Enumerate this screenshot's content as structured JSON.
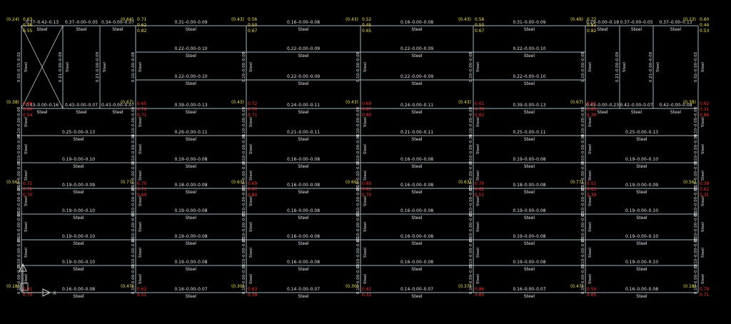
{
  "drawing": {
    "material": "Steel",
    "colors": {
      "background": "#000000",
      "member": "#9fb3bd",
      "brace": "#c8c8c8",
      "label": "#e6e6e6",
      "ratio_yellow": "#f2e24a",
      "ratio_red": "#ff3030",
      "ucs_icon": "#d0d0d0"
    },
    "ucs_axis_label": "X",
    "column_lines": 8,
    "floor_levels": 8,
    "roof_beams_row0": [
      "0.37–0.42–0.13",
      "0.37–0.00–0.05",
      "0.34–0.00–0.07",
      "0.31–0.00–0.09",
      "0.16–0.00–0.08",
      "0.16–0.00–0.08",
      "0.31–0.00–0.09",
      "0.29–0.00–0.18",
      "0.37–0.00–0.05",
      "0.37–0.00–0.13"
    ],
    "roof_inner_beams": [
      [
        "0.22–0.00–0.10",
        "0.22–0.00–0.09",
        "0.22–0.00–0.09",
        "0.22–0.00–0.10"
      ],
      [
        "0.22–0.00–0.10",
        "0.22–0.00–0.09",
        "0.22–0.00–0.09",
        "0.22–0.00–0.10"
      ]
    ],
    "level_beams": [
      [
        "0.43–0.00–0.16",
        "0.43–0.00–0.07",
        "0.43–0.00–0.07",
        "0.39–0.00–0.13",
        "0.24–0.00–0.11",
        "0.24–0.00–0.11",
        "0.39–0.00–0.13",
        "0.43–0.00–0.23",
        "0.42–0.00–0.07",
        "0.42–0.00–0.08"
      ],
      [
        "0.25–0.00–0.13",
        "0.26–0.00–0.11",
        "0.21–0.00–0.11",
        "0.21–0.00–0.11",
        "0.25–0.00–0.11",
        "0.25–0.00–0.13"
      ],
      [
        "0.19–0.00–0.10",
        "0.19–0.00–0.08",
        "0.16–0.00–0.08",
        "0.16–0.00–0.08",
        "0.19–0.00–0.08",
        "0.19–0.00–0.10"
      ],
      [
        "0.19–0.00–0.09",
        "0.18–0.00–0.08",
        "0.16–0.00–0.08",
        "0.16–0.00–0.08",
        "0.18–0.00–0.08",
        "0.19–0.00–0.09"
      ],
      [
        "0.19–0.00–0.10",
        "0.19–0.00–0.08",
        "0.16–0.00–0.08",
        "0.16–0.00–0.08",
        "0.19–0.00–0.08",
        "0.19–0.00–0.10"
      ],
      [
        "0.19–0.00–0.10",
        "0.19–0.00–0.08",
        "0.16–0.00–0.08",
        "0.16–0.00–0.08",
        "0.19–0.00–0.08",
        "0.19–0.00–0.10"
      ],
      [
        "0.19–0.00–0.10",
        "0.19–0.00–0.08",
        "0.16–0.00–0.08",
        "0.16–0.00–0.08",
        "0.19–0.00–0.08",
        "0.19–0.00–0.10"
      ],
      [
        "0.16–0.00–0.08",
        "0.16–0.00–0.07",
        "0.14–0.00–0.07",
        "0.14–0.00–0.07",
        "0.16–0.00–0.07",
        "0.16–0.00–0.08"
      ]
    ],
    "roof_columns": [
      "0.02–0.15–0.02",
      "0.21–0.00–0.09",
      "0.21–0.00–0.09",
      "0.21–0.00–0.09",
      "0.21–0.00–0.09",
      "0.02–0.00–0.02"
    ],
    "column_labels": "0.10–0.00–0.08",
    "joint_ratios_top": [
      "(0.24)",
      "(0.64)",
      "(0.43)",
      "(0.43)",
      "(0.43)",
      "(0.49)",
      "(0.23)"
    ],
    "joint_ratios_yellow": [
      "0.63",
      "0.71",
      "0.56",
      "0.52",
      "0.56",
      "0.72",
      "0.60"
    ],
    "joint_values": [
      "0.46",
      "0.55",
      "0.62",
      "0.82",
      "0.50",
      "0.67",
      "0.45",
      "0.65",
      "0.50",
      "0.67",
      "0.82",
      "0.82",
      "0.44",
      "0.53"
    ],
    "joint_ratios_level1": [
      "(0.38)",
      "(0.67)",
      "(0.43)",
      "(0.43)",
      "(0.43)",
      "(0.67)",
      "(0.38)"
    ],
    "joint_ratios_level4": [
      "(0.56)",
      "(0.77)",
      "(0.63)",
      "(0.69)",
      "(0.63)",
      "(0.77)",
      "(0.56)"
    ],
    "joint_ratios_level8": [
      "(0.18)",
      "(0.47)",
      "(0.30)",
      "(0.30)",
      "(0.37)",
      "(0.47)",
      "(0.18)"
    ],
    "red_values": [
      "0.86",
      "0.60",
      "0.54",
      "0.65",
      "0.79",
      "0.71",
      "0.72",
      "0.70",
      "0.71",
      "0.69",
      "0.67",
      "0.80",
      "0.61",
      "0.70",
      "0.62",
      "0.51",
      "0.63",
      "0.39",
      "0.62",
      "0.31"
    ]
  }
}
